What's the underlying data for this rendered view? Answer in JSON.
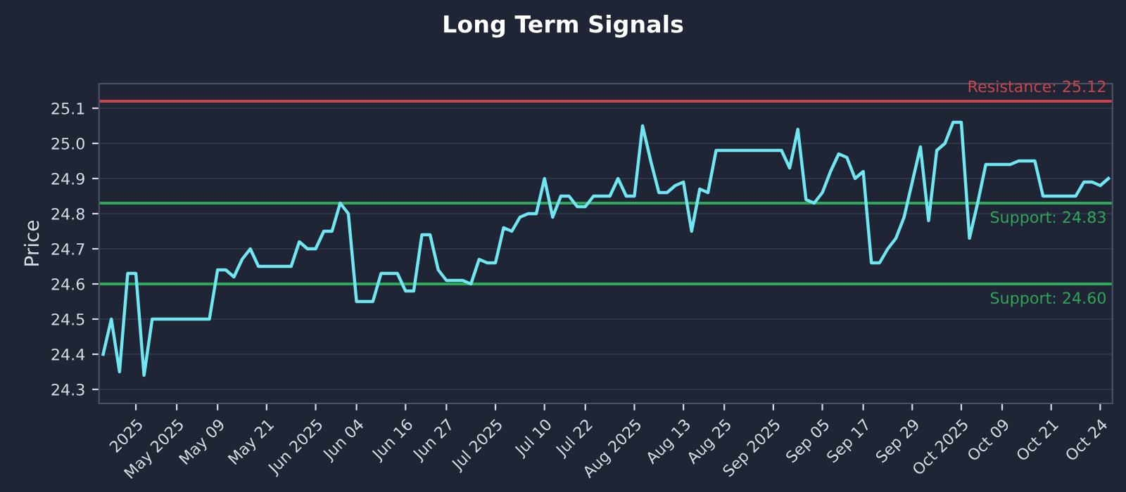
{
  "chart_data": {
    "type": "line",
    "title": "Long Term Signals",
    "ylabel": "Price",
    "categories": [
      null,
      null,
      null,
      null,
      "2025",
      null,
      null,
      null,
      null,
      "May 2025",
      null,
      null,
      null,
      null,
      "May 09",
      null,
      null,
      null,
      null,
      null,
      "May 21",
      null,
      null,
      null,
      null,
      null,
      "Jun 2025",
      null,
      null,
      null,
      null,
      "Jun 04",
      null,
      null,
      null,
      null,
      null,
      "Jun 16",
      null,
      null,
      null,
      null,
      "Jun 27",
      null,
      null,
      null,
      null,
      null,
      "Jul 2025",
      null,
      null,
      null,
      null,
      null,
      "Jul 10",
      null,
      null,
      null,
      null,
      "Jul 22",
      null,
      null,
      null,
      null,
      null,
      "Aug 2025",
      null,
      null,
      null,
      null,
      null,
      "Aug 13",
      null,
      null,
      null,
      null,
      "Aug 25",
      null,
      null,
      null,
      null,
      null,
      "Sep 2025",
      null,
      null,
      null,
      null,
      null,
      "Sep 05",
      null,
      null,
      null,
      null,
      "Sep 17",
      null,
      null,
      null,
      null,
      null,
      "Sep 29",
      null,
      null,
      null,
      null,
      null,
      "Oct 2025",
      null,
      null,
      null,
      null,
      "Oct 09",
      null,
      null,
      null,
      null,
      null,
      "Oct 21",
      null,
      null,
      null,
      null,
      null,
      "Oct 24",
      null
    ],
    "series": [
      {
        "color": "#6fe6f0",
        "values": [
          24.4,
          24.5,
          24.35,
          24.63,
          24.63,
          24.34,
          24.5,
          24.5,
          24.5,
          24.5,
          24.5,
          24.5,
          24.5,
          24.5,
          24.64,
          24.64,
          24.62,
          24.67,
          24.7,
          24.65,
          24.65,
          24.65,
          24.65,
          24.65,
          24.72,
          24.7,
          24.7,
          24.75,
          24.75,
          24.83,
          24.8,
          24.55,
          24.55,
          24.55,
          24.63,
          24.63,
          24.63,
          24.58,
          24.58,
          24.74,
          24.74,
          24.64,
          24.61,
          24.61,
          24.61,
          24.6,
          24.67,
          24.66,
          24.66,
          24.76,
          24.75,
          24.79,
          24.8,
          24.8,
          24.9,
          24.79,
          24.85,
          24.85,
          24.82,
          24.82,
          24.85,
          24.85,
          24.85,
          24.9,
          24.85,
          24.85,
          25.05,
          24.95,
          24.86,
          24.86,
          24.88,
          24.89,
          24.75,
          24.87,
          24.86,
          24.98,
          24.98,
          24.98,
          24.98,
          24.98,
          24.98,
          24.98,
          24.98,
          24.98,
          24.93,
          25.04,
          24.84,
          24.83,
          24.86,
          24.92,
          24.97,
          24.96,
          24.9,
          24.92,
          24.66,
          24.66,
          24.7,
          24.73,
          24.79,
          24.89,
          24.99,
          24.78,
          24.98,
          25.0,
          25.06,
          25.06,
          24.73,
          24.83,
          24.94,
          24.94,
          24.94,
          24.94,
          24.95,
          24.95,
          24.95,
          24.85,
          24.85,
          24.85,
          24.85,
          24.85,
          24.89,
          24.89,
          24.88,
          24.9
        ]
      }
    ],
    "ylim": [
      24.26,
      25.17
    ],
    "yticks": [
      24.3,
      24.4,
      24.5,
      24.6,
      24.7,
      24.8,
      24.9,
      {
        "value": 25.0,
        "label": "25.0"
      },
      25.1
    ],
    "ref_lines": [
      {
        "axis": "y",
        "value": 25.12,
        "label": "Resistance: 25.12",
        "color": "#c8474f"
      },
      {
        "axis": "y",
        "value": 24.83,
        "label": "Support: 24.83",
        "color": "#2fa65a"
      },
      {
        "axis": "y",
        "value": 24.6,
        "label": "Support: 24.60",
        "color": "#2fa65a"
      }
    ],
    "grid": "y",
    "marker": "none",
    "line_style": "solid"
  }
}
